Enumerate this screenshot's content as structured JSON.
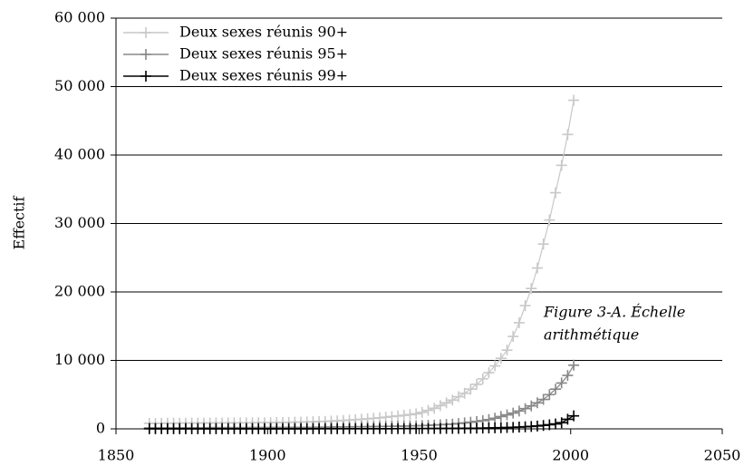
{
  "chart_data": {
    "type": "line",
    "y_label": "Effectif",
    "annotation": [
      "Figure 3-A. Échelle",
      "arithmétique"
    ],
    "x": [
      1861,
      1863,
      1865,
      1867,
      1869,
      1871,
      1873,
      1875,
      1877,
      1879,
      1881,
      1883,
      1885,
      1887,
      1889,
      1891,
      1893,
      1895,
      1897,
      1899,
      1901,
      1903,
      1905,
      1907,
      1909,
      1911,
      1913,
      1915,
      1917,
      1919,
      1921,
      1923,
      1925,
      1927,
      1929,
      1931,
      1933,
      1935,
      1937,
      1939,
      1941,
      1943,
      1945,
      1947,
      1949,
      1951,
      1953,
      1955,
      1957,
      1959,
      1961,
      1963,
      1965,
      1967,
      1969,
      1971,
      1973,
      1975,
      1977,
      1979,
      1981,
      1983,
      1985,
      1987,
      1989,
      1991,
      1993,
      1995,
      1997,
      1999,
      2001
    ],
    "series": [
      {
        "name": "Deux sexes réunis 90+",
        "color": "#c8c8c8",
        "values": [
          800,
          800,
          810,
          820,
          820,
          830,
          830,
          840,
          840,
          850,
          850,
          860,
          860,
          870,
          870,
          880,
          880,
          890,
          900,
          900,
          910,
          920,
          930,
          950,
          970,
          990,
          1010,
          1040,
          1070,
          1100,
          1140,
          1180,
          1230,
          1280,
          1340,
          1400,
          1470,
          1540,
          1620,
          1700,
          1790,
          1880,
          1980,
          2080,
          2200,
          2400,
          2700,
          3000,
          3400,
          3800,
          4200,
          4700,
          5200,
          5800,
          6500,
          7300,
          8200,
          9200,
          10300,
          11500,
          13500,
          15500,
          18000,
          20500,
          23500,
          27000,
          30500,
          34500,
          38500,
          43000,
          48000
        ]
      },
      {
        "name": "Deux sexes réunis  95+",
        "color": "#888888",
        "values": [
          150,
          150,
          150,
          155,
          155,
          160,
          160,
          160,
          165,
          165,
          170,
          170,
          170,
          175,
          175,
          180,
          180,
          185,
          185,
          190,
          190,
          195,
          200,
          205,
          210,
          215,
          220,
          230,
          240,
          250,
          260,
          270,
          280,
          290,
          300,
          310,
          320,
          335,
          350,
          365,
          380,
          395,
          410,
          430,
          450,
          480,
          510,
          550,
          600,
          650,
          700,
          780,
          870,
          970,
          1080,
          1200,
          1350,
          1550,
          1800,
          2050,
          2300,
          2600,
          2950,
          3350,
          3800,
          4300,
          5000,
          5800,
          6700,
          7800,
          9300
        ]
      },
      {
        "name": "Deux sexes réunis  99+",
        "color": "#000000",
        "values": [
          10,
          10,
          10,
          10,
          10,
          10,
          10,
          10,
          10,
          10,
          10,
          10,
          10,
          10,
          10,
          10,
          10,
          10,
          10,
          10,
          10,
          10,
          10,
          12,
          12,
          12,
          14,
          14,
          15,
          15,
          16,
          16,
          18,
          18,
          20,
          20,
          22,
          24,
          26,
          28,
          30,
          32,
          35,
          38,
          40,
          44,
          48,
          52,
          56,
          60,
          66,
          72,
          80,
          90,
          100,
          115,
          130,
          150,
          170,
          195,
          220,
          260,
          300,
          350,
          420,
          500,
          600,
          720,
          900,
          1400,
          1900
        ]
      }
    ],
    "xlim": [
      1850,
      2050
    ],
    "xticks": [
      1850,
      1900,
      1950,
      2000,
      2050
    ],
    "ylim": [
      0,
      60000
    ],
    "yticks": [
      0,
      {
        "value": 10000,
        "label": "10 000"
      },
      {
        "value": 20000,
        "label": "20 000"
      },
      {
        "value": 30000,
        "label": "30 000"
      },
      {
        "value": 40000,
        "label": "40 000"
      },
      {
        "value": 50000,
        "label": "50 000"
      },
      {
        "value": 60000,
        "label": "60 000"
      }
    ],
    "grid": true,
    "legend": "top-left",
    "marker": "plus"
  }
}
